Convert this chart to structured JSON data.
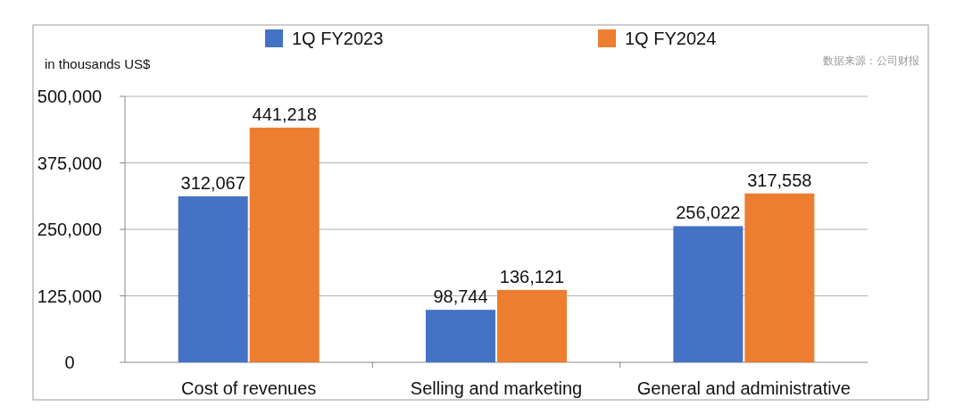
{
  "chart_data": {
    "type": "bar",
    "ylabel": "in thousands US$",
    "annotations": [
      "数据来源：公司财报"
    ],
    "categories": [
      "Cost of revenues",
      "Selling and marketing",
      "General and administrative"
    ],
    "series": [
      {
        "name": "1Q FY2023",
        "color": "#4472c4",
        "values": [
          312067,
          98744,
          256022
        ],
        "value_labels": [
          "312,067",
          "98,744",
          "256,022"
        ]
      },
      {
        "name": "1Q FY2024",
        "color": "#ed7d31",
        "values": [
          441218,
          136121,
          317558
        ],
        "value_labels": [
          "441,218",
          "136,121",
          "317,558"
        ]
      }
    ],
    "ylim": [
      0,
      500000
    ],
    "yticks": [
      0,
      {
        "value": 125000,
        "label": "125,000"
      },
      {
        "value": 250000,
        "label": "250,000"
      },
      {
        "value": 375000,
        "label": "375,000"
      },
      {
        "value": 500000,
        "label": "500,000"
      }
    ],
    "grid": "y",
    "legend": "top"
  }
}
